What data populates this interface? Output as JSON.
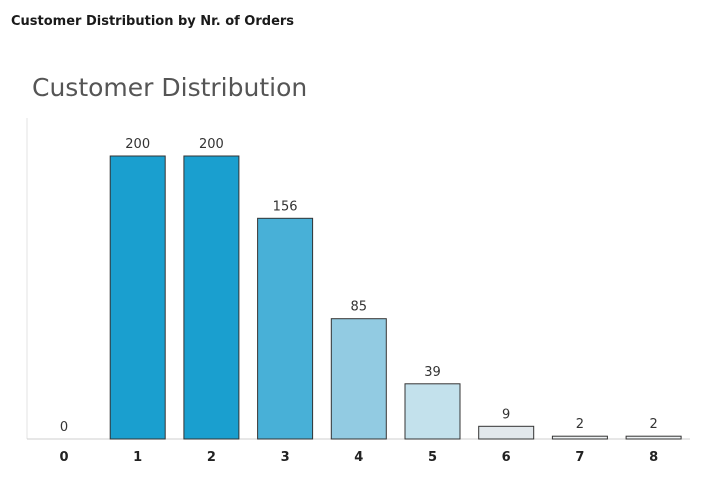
{
  "sheet_title": "Customer Distribution by Nr. of Orders",
  "chart_data": {
    "type": "bar",
    "title": "Customer Distribution",
    "categories": [
      "0",
      "1",
      "2",
      "3",
      "4",
      "5",
      "6",
      "7",
      "8"
    ],
    "values": [
      0,
      200,
      200,
      156,
      85,
      39,
      9,
      2,
      2
    ],
    "value_labels": [
      "0",
      "200",
      "200",
      "156",
      "85",
      "39",
      "9",
      "2",
      "2"
    ],
    "ylim": [
      0,
      200
    ],
    "colors": [
      "#1a9fcf",
      "#1a9fcf",
      "#1a9fcf",
      "#48b0d7",
      "#92cbe2",
      "#c3e1ec",
      "#e2e8ec",
      "#eef1f3",
      "#eef1f3"
    ],
    "bar_stroke": "#333333",
    "grid": false,
    "legend": "none"
  }
}
